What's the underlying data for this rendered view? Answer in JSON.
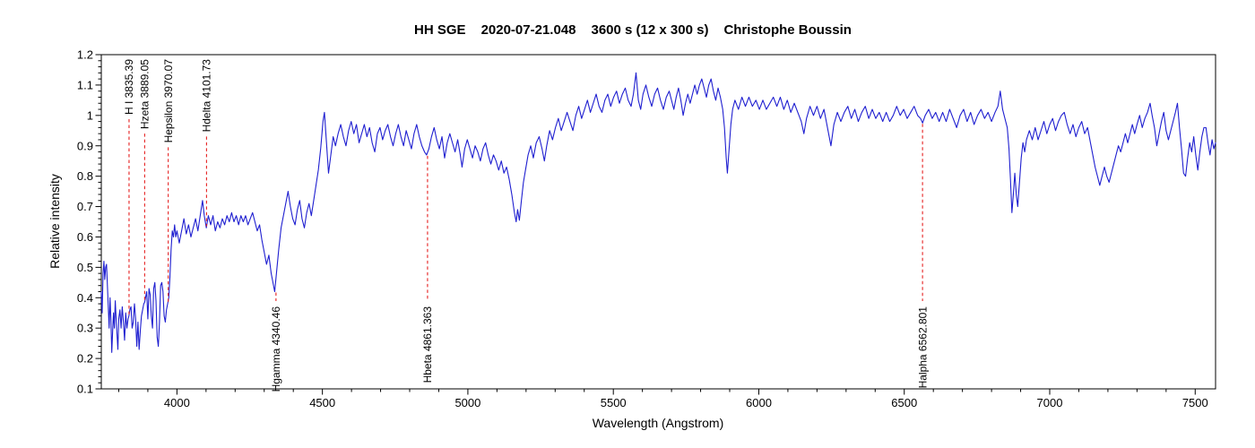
{
  "title": {
    "parts": [
      "HH SGE",
      "2020-07-21.048",
      "3600 s (12 x 300 s)",
      "Christophe Boussin"
    ]
  },
  "chart_data": {
    "type": "line",
    "title": "HH SGE  2020-07-21.048  3600 s (12 x 300 s)  Christophe Boussin",
    "xlabel": "Wavelength (Angstrom)",
    "ylabel": "Relative intensity",
    "xlim": [
      3740,
      7570
    ],
    "ylim": [
      0.1,
      1.2
    ],
    "grid": false,
    "background_color": "#ffffff",
    "frame_color": "#000000",
    "line_color": "#1f1fd0",
    "annotation_color": "#e62020",
    "x_major_ticks": [
      4000,
      4500,
      5000,
      5500,
      6000,
      6500,
      7000,
      7500
    ],
    "x_minor_step": 100,
    "y_major_tick_labels": [
      "0.1",
      "0.2",
      "0.3",
      "0.4",
      "0.5",
      "0.6",
      "0.7",
      "0.8",
      "0.9",
      "1",
      "1.1",
      "1.2"
    ],
    "y_minor_step": 0.02,
    "annotations": {
      "top": [
        {
          "label": "H I 3835.39",
          "wavelength": 3835.39,
          "line_end_intensity": 0.345
        },
        {
          "label": "Hzeta 3889.05",
          "wavelength": 3889.05,
          "line_end_intensity": 0.39
        },
        {
          "label": "Hepsilon 3970.07",
          "wavelength": 3970.07,
          "line_end_intensity": 0.385
        },
        {
          "label": "Hdelta 4101.73",
          "wavelength": 4101.73,
          "line_end_intensity": 0.635
        }
      ],
      "bottom": [
        {
          "label": "Hgamma 4340.46",
          "wavelength": 4340.46,
          "line_end_intensity": 0.42
        },
        {
          "label": "Hbeta 4861.363",
          "wavelength": 4861.363,
          "line_end_intensity": 0.87
        },
        {
          "label": "Halpha 6562.801",
          "wavelength": 6562.801,
          "line_end_intensity": 0.975
        }
      ]
    },
    "series": [
      {
        "name": "HH SGE relative intensity spectrum",
        "points_flat": [
          3740,
          0.42,
          3743,
          0.35,
          3746,
          0.48,
          3749,
          0.52,
          3752,
          0.46,
          3755,
          0.5,
          3758,
          0.51,
          3761,
          0.44,
          3764,
          0.37,
          3767,
          0.3,
          3770,
          0.4,
          3773,
          0.33,
          3776,
          0.22,
          3779,
          0.29,
          3782,
          0.35,
          3785,
          0.3,
          3788,
          0.39,
          3791,
          0.33,
          3794,
          0.28,
          3797,
          0.23,
          3800,
          0.33,
          3804,
          0.36,
          3808,
          0.3,
          3812,
          0.37,
          3816,
          0.32,
          3820,
          0.26,
          3824,
          0.35,
          3828,
          0.3,
          3832,
          0.33,
          3835,
          0.34,
          3838,
          0.36,
          3842,
          0.37,
          3846,
          0.3,
          3850,
          0.32,
          3854,
          0.38,
          3858,
          0.33,
          3862,
          0.24,
          3866,
          0.32,
          3870,
          0.23,
          3874,
          0.29,
          3878,
          0.34,
          3882,
          0.36,
          3886,
          0.38,
          3889,
          0.385,
          3892,
          0.4,
          3896,
          0.42,
          3900,
          0.33,
          3904,
          0.43,
          3908,
          0.41,
          3912,
          0.34,
          3916,
          0.3,
          3920,
          0.43,
          3924,
          0.45,
          3928,
          0.39,
          3932,
          0.27,
          3936,
          0.24,
          3940,
          0.32,
          3944,
          0.44,
          3948,
          0.45,
          3952,
          0.42,
          3956,
          0.34,
          3960,
          0.32,
          3964,
          0.36,
          3968,
          0.38,
          3972,
          0.4,
          3976,
          0.47,
          3980,
          0.56,
          3984,
          0.62,
          3988,
          0.6,
          3992,
          0.64,
          3996,
          0.6,
          4000,
          0.62,
          4008,
          0.58,
          4016,
          0.62,
          4024,
          0.66,
          4032,
          0.61,
          4040,
          0.64,
          4048,
          0.6,
          4056,
          0.63,
          4064,
          0.66,
          4072,
          0.62,
          4080,
          0.67,
          4088,
          0.72,
          4094,
          0.67,
          4101,
          0.63,
          4108,
          0.67,
          4116,
          0.64,
          4124,
          0.67,
          4132,
          0.62,
          4140,
          0.65,
          4148,
          0.63,
          4156,
          0.66,
          4164,
          0.64,
          4172,
          0.67,
          4180,
          0.65,
          4188,
          0.68,
          4196,
          0.65,
          4204,
          0.67,
          4212,
          0.64,
          4220,
          0.67,
          4228,
          0.65,
          4236,
          0.67,
          4244,
          0.64,
          4252,
          0.66,
          4260,
          0.68,
          4268,
          0.65,
          4276,
          0.62,
          4284,
          0.64,
          4292,
          0.59,
          4300,
          0.55,
          4308,
          0.51,
          4316,
          0.54,
          4324,
          0.48,
          4330,
          0.45,
          4336,
          0.42,
          4342,
          0.48,
          4350,
          0.56,
          4358,
          0.63,
          4366,
          0.67,
          4374,
          0.71,
          4382,
          0.75,
          4390,
          0.7,
          4398,
          0.66,
          4406,
          0.64,
          4414,
          0.69,
          4422,
          0.72,
          4430,
          0.66,
          4438,
          0.63,
          4446,
          0.68,
          4454,
          0.71,
          4462,
          0.67,
          4470,
          0.72,
          4478,
          0.77,
          4486,
          0.82,
          4494,
          0.89,
          4502,
          0.98,
          4507,
          1.01,
          4514,
          0.91,
          4521,
          0.81,
          4529,
          0.87,
          4537,
          0.93,
          4545,
          0.9,
          4554,
          0.94,
          4563,
          0.97,
          4572,
          0.93,
          4581,
          0.9,
          4590,
          0.95,
          4599,
          0.98,
          4608,
          0.94,
          4617,
          0.97,
          4626,
          0.91,
          4635,
          0.94,
          4644,
          0.97,
          4653,
          0.93,
          4662,
          0.96,
          4671,
          0.91,
          4680,
          0.88,
          4689,
          0.94,
          4698,
          0.96,
          4707,
          0.92,
          4716,
          0.95,
          4725,
          0.97,
          4734,
          0.93,
          4743,
          0.9,
          4752,
          0.94,
          4761,
          0.97,
          4770,
          0.93,
          4779,
          0.9,
          4788,
          0.95,
          4797,
          0.92,
          4806,
          0.89,
          4815,
          0.94,
          4824,
          0.97,
          4833,
          0.93,
          4842,
          0.9,
          4851,
          0.88,
          4858,
          0.87,
          4866,
          0.89,
          4875,
          0.93,
          4884,
          0.96,
          4893,
          0.92,
          4902,
          0.89,
          4911,
          0.93,
          4920,
          0.86,
          4929,
          0.91,
          4938,
          0.94,
          4947,
          0.91,
          4956,
          0.88,
          4965,
          0.92,
          4974,
          0.87,
          4980,
          0.83,
          4989,
          0.89,
          4998,
          0.92,
          5007,
          0.89,
          5016,
          0.86,
          5025,
          0.9,
          5034,
          0.88,
          5043,
          0.85,
          5052,
          0.89,
          5061,
          0.91,
          5070,
          0.87,
          5079,
          0.84,
          5088,
          0.87,
          5097,
          0.85,
          5106,
          0.82,
          5115,
          0.85,
          5124,
          0.81,
          5133,
          0.83,
          5142,
          0.79,
          5151,
          0.74,
          5160,
          0.68,
          5166,
          0.65,
          5171,
          0.69,
          5177,
          0.655,
          5184,
          0.72,
          5191,
          0.78,
          5198,
          0.82,
          5207,
          0.87,
          5216,
          0.9,
          5225,
          0.86,
          5235,
          0.91,
          5245,
          0.93,
          5255,
          0.89,
          5263,
          0.85,
          5271,
          0.9,
          5281,
          0.95,
          5291,
          0.92,
          5301,
          0.96,
          5311,
          0.99,
          5321,
          0.95,
          5331,
          0.98,
          5341,
          1.01,
          5351,
          0.98,
          5361,
          0.95,
          5371,
          1.0,
          5381,
          1.03,
          5391,
          0.99,
          5401,
          1.02,
          5411,
          1.05,
          5421,
          1.01,
          5431,
          1.04,
          5441,
          1.07,
          5451,
          1.03,
          5461,
          1.01,
          5471,
          1.05,
          5481,
          1.07,
          5491,
          1.03,
          5501,
          1.06,
          5511,
          1.08,
          5521,
          1.04,
          5531,
          1.07,
          5541,
          1.09,
          5551,
          1.05,
          5561,
          1.03,
          5569,
          1.07,
          5578,
          1.14,
          5586,
          1.05,
          5594,
          1.02,
          5602,
          1.07,
          5612,
          1.1,
          5622,
          1.06,
          5632,
          1.03,
          5642,
          1.07,
          5652,
          1.09,
          5662,
          1.05,
          5672,
          1.02,
          5682,
          1.06,
          5692,
          1.08,
          5700,
          1.05,
          5708,
          1.02,
          5716,
          1.06,
          5724,
          1.09,
          5732,
          1.05,
          5740,
          1.0,
          5748,
          1.04,
          5756,
          1.07,
          5764,
          1.04,
          5772,
          1.07,
          5780,
          1.1,
          5788,
          1.07,
          5796,
          1.1,
          5804,
          1.12,
          5812,
          1.09,
          5820,
          1.06,
          5828,
          1.1,
          5836,
          1.12,
          5844,
          1.08,
          5852,
          1.05,
          5860,
          1.09,
          5868,
          1.06,
          5876,
          1.02,
          5882,
          0.96,
          5888,
          0.86,
          5892,
          0.81,
          5898,
          0.89,
          5904,
          0.97,
          5910,
          1.02,
          5918,
          1.05,
          5930,
          1.02,
          5942,
          1.06,
          5954,
          1.03,
          5966,
          1.06,
          5978,
          1.03,
          5990,
          1.05,
          6002,
          1.02,
          6014,
          1.05,
          6026,
          1.02,
          6038,
          1.04,
          6050,
          1.06,
          6062,
          1.03,
          6074,
          1.06,
          6086,
          1.02,
          6098,
          1.05,
          6110,
          1.01,
          6122,
          1.04,
          6134,
          1.01,
          6146,
          0.98,
          6155,
          0.94,
          6164,
          0.99,
          6176,
          1.03,
          6188,
          1.0,
          6200,
          1.03,
          6212,
          0.99,
          6224,
          1.02,
          6236,
          0.96,
          6248,
          0.9,
          6258,
          0.97,
          6270,
          1.01,
          6282,
          0.98,
          6294,
          1.01,
          6306,
          1.03,
          6318,
          0.99,
          6330,
          1.02,
          6342,
          0.98,
          6354,
          1.01,
          6366,
          1.03,
          6378,
          0.99,
          6390,
          1.02,
          6402,
          0.99,
          6414,
          1.01,
          6426,
          0.98,
          6438,
          1.01,
          6450,
          0.98,
          6462,
          1.0,
          6474,
          1.03,
          6486,
          1.0,
          6498,
          1.02,
          6510,
          0.99,
          6522,
          1.01,
          6534,
          1.03,
          6546,
          1.0,
          6556,
          0.99,
          6563,
          0.975,
          6572,
          1.0,
          6584,
          1.02,
          6596,
          0.99,
          6608,
          1.01,
          6620,
          0.98,
          6632,
          1.01,
          6644,
          0.98,
          6656,
          1.02,
          6668,
          0.99,
          6680,
          0.96,
          6692,
          1.0,
          6704,
          1.02,
          6716,
          0.98,
          6728,
          1.01,
          6740,
          0.97,
          6752,
          1.0,
          6764,
          1.02,
          6776,
          0.99,
          6788,
          1.01,
          6800,
          0.98,
          6812,
          1.01,
          6822,
          1.03,
          6830,
          1.08,
          6838,
          1.02,
          6846,
          0.99,
          6854,
          0.96,
          6860,
          0.89,
          6865,
          0.79,
          6870,
          0.68,
          6875,
          0.74,
          6880,
          0.81,
          6885,
          0.74,
          6890,
          0.7,
          6896,
          0.78,
          6902,
          0.86,
          6908,
          0.91,
          6914,
          0.88,
          6920,
          0.92,
          6930,
          0.95,
          6940,
          0.92,
          6950,
          0.96,
          6960,
          0.92,
          6970,
          0.95,
          6980,
          0.98,
          6990,
          0.94,
          7000,
          0.97,
          7010,
          0.99,
          7020,
          0.95,
          7030,
          0.98,
          7040,
          1.0,
          7050,
          1.01,
          7060,
          0.97,
          7070,
          0.94,
          7080,
          0.97,
          7090,
          0.93,
          7100,
          0.96,
          7110,
          0.98,
          7120,
          0.94,
          7130,
          0.96,
          7140,
          0.91,
          7148,
          0.87,
          7156,
          0.83,
          7164,
          0.8,
          7172,
          0.77,
          7180,
          0.8,
          7188,
          0.83,
          7196,
          0.8,
          7204,
          0.78,
          7212,
          0.81,
          7220,
          0.84,
          7228,
          0.87,
          7236,
          0.9,
          7244,
          0.88,
          7252,
          0.91,
          7260,
          0.94,
          7268,
          0.91,
          7276,
          0.94,
          7284,
          0.97,
          7292,
          0.94,
          7300,
          0.97,
          7309,
          1.0,
          7318,
          0.96,
          7327,
          0.99,
          7336,
          1.01,
          7345,
          1.04,
          7352,
          1.0,
          7360,
          0.96,
          7368,
          0.9,
          7376,
          0.94,
          7384,
          0.98,
          7392,
          1.01,
          7400,
          0.95,
          7408,
          0.92,
          7416,
          0.95,
          7424,
          0.98,
          7432,
          1.01,
          7439,
          1.04,
          7446,
          0.96,
          7453,
          0.89,
          7460,
          0.81,
          7467,
          0.8,
          7474,
          0.86,
          7481,
          0.91,
          7488,
          0.88,
          7495,
          0.93,
          7502,
          0.87,
          7509,
          0.82,
          7516,
          0.88,
          7523,
          0.93,
          7530,
          0.96,
          7537,
          0.96,
          7544,
          0.91,
          7551,
          0.87,
          7558,
          0.92,
          7564,
          0.89,
          7570,
          0.91
        ]
      }
    ]
  }
}
